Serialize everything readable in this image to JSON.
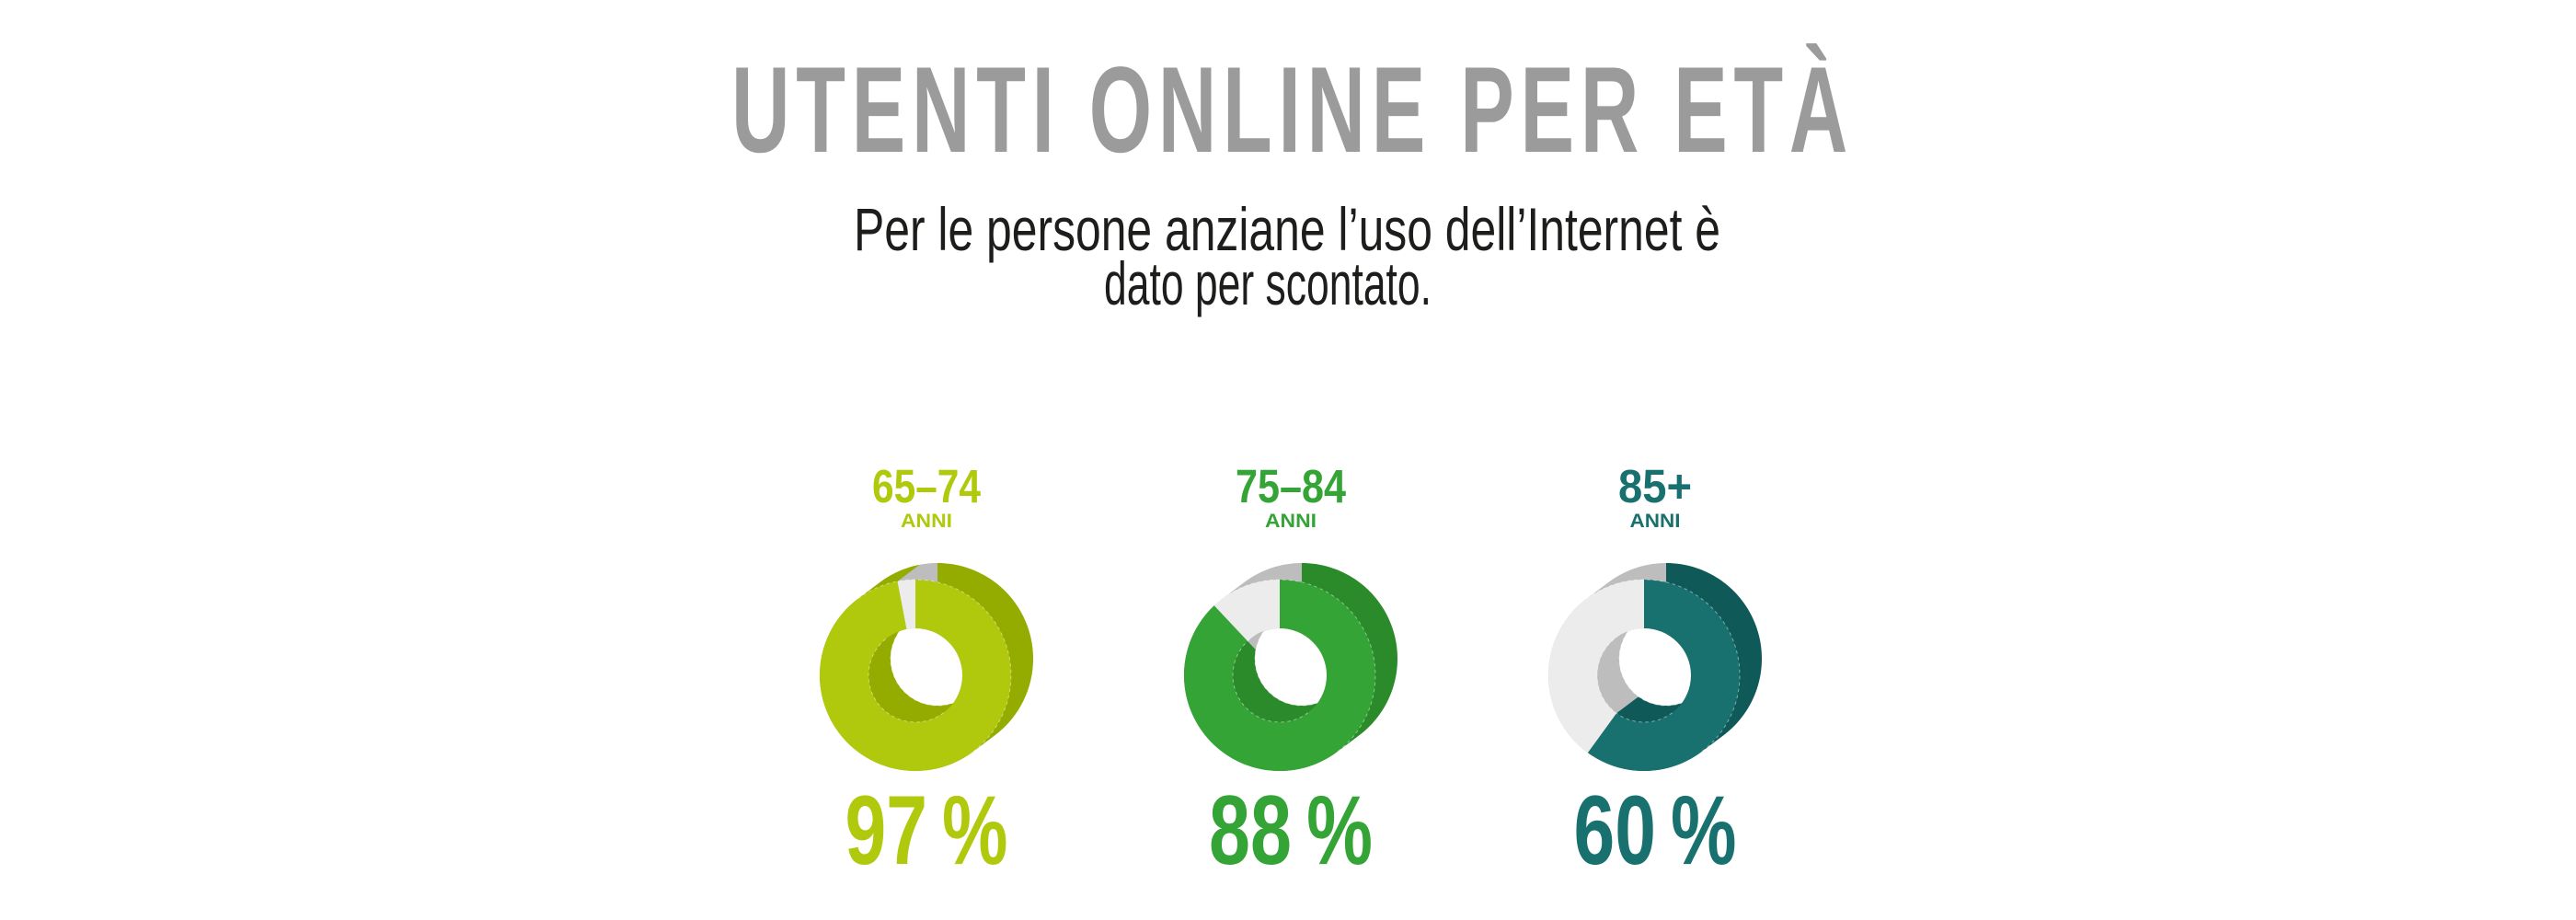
{
  "title": {
    "text": "UTENTI ONLINE PER ETÀ",
    "color": "#9a9b9a"
  },
  "subtitle": {
    "line1": "Per le persone anziane l’uso dell’Internet è",
    "line2": "dato per scontato.",
    "color": "#1d1d1b"
  },
  "chart_data": {
    "type": "pie",
    "variant": "3d-extruded-donut",
    "title": "UTENTI ONLINE PER ETÀ",
    "unit": "%",
    "direction": "clockwise-from-top",
    "legend": "none",
    "background": "#ffffff",
    "categories": [
      "65–74",
      "75–84",
      "85+"
    ],
    "values": [
      97,
      88,
      60
    ],
    "groups": [
      {
        "age_range": "65–74",
        "age_unit": "ANNI",
        "value": 97,
        "value_label": "97 %",
        "color": "#b0c90d",
        "color_dark": "#94ac00"
      },
      {
        "age_range": "75–84",
        "age_unit": "ANNI",
        "value": 88,
        "value_label": "88 %",
        "color": "#34a436",
        "color_dark": "#2b8a2a"
      },
      {
        "age_range": "85+",
        "age_unit": "ANNI",
        "value": 60,
        "value_label": "60 %",
        "color": "#18716e",
        "color_dark": "#0f5a59"
      }
    ],
    "remainder_color": "#ececec",
    "remainder_color_dark": "#bdbdbd"
  }
}
